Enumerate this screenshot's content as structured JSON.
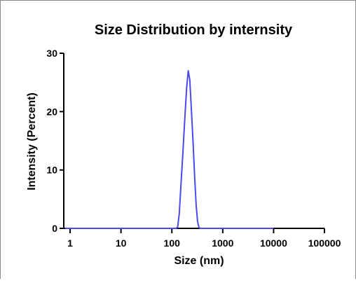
{
  "chart_data": {
    "type": "line",
    "title": "Size Distribution by internsity",
    "xlabel": "Size (nm)",
    "ylabel": "Intensity (Percent)",
    "x_scale": "log",
    "xlim": [
      0.75,
      100000
    ],
    "ylim": [
      0,
      30
    ],
    "x_ticks": [
      1,
      10,
      100,
      1000,
      10000,
      100000
    ],
    "x_tick_labels": [
      "1",
      "10",
      "100",
      "1000",
      "10000",
      "100000"
    ],
    "y_ticks": [
      0,
      10,
      20,
      30
    ],
    "y_tick_labels": [
      "0",
      "10",
      "20",
      "30"
    ],
    "grid": false,
    "series": [
      {
        "color": "#4a4af0",
        "x": [
          0.8,
          1,
          10,
          100,
          120,
          130,
          140,
          150,
          165,
          180,
          195,
          210,
          225,
          240,
          260,
          280,
          300,
          320,
          340,
          360,
          400,
          500,
          1000,
          10000
        ],
        "y": [
          0,
          0,
          0,
          0,
          0,
          0.2,
          2.5,
          7,
          13,
          19,
          24,
          27,
          25.5,
          21,
          15,
          9,
          4,
          1.2,
          0.2,
          0,
          0,
          0,
          0,
          0
        ]
      }
    ]
  }
}
